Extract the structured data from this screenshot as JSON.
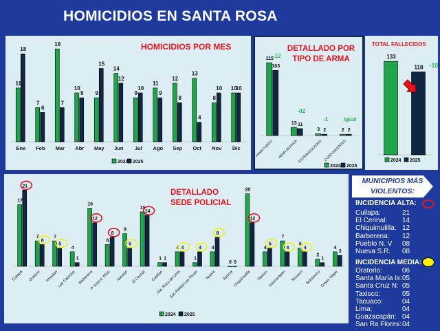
{
  "header": {
    "title": "HOMICIDIOS EN SANTA ROSA"
  },
  "colors": {
    "y2024": "#1fa64a",
    "y2025": "#0f2742",
    "background": "#1d3a9c",
    "panel": "#dcedf3",
    "title_red": "#e8141b",
    "diff_green": "#2bb34f"
  },
  "chart_data": [
    {
      "id": "monthly",
      "type": "bar",
      "title": "HOMICIDIOS POR MES",
      "categories": [
        "Ene",
        "Feb",
        "Mar",
        "Abr",
        "May",
        "Jun",
        "Jul",
        "Ago",
        "Sep",
        "Oct",
        "Nov",
        "Dic"
      ],
      "series": [
        {
          "name": "2024",
          "values": [
            11,
            7,
            19,
            10,
            9,
            14,
            9,
            11,
            12,
            13,
            8,
            10
          ]
        },
        {
          "name": "2025",
          "values": [
            18,
            6,
            7,
            9,
            15,
            12,
            10,
            9,
            8,
            4,
            10,
            10
          ]
        }
      ],
      "ylim": [
        0,
        20
      ],
      "grid": false,
      "legend": "bottom"
    },
    {
      "id": "weapon",
      "type": "bar",
      "title": "DETALLADO POR TIPO DE ARMA",
      "categories": [
        "ARMA FUEGO",
        "ARMA BLANCA",
        "ESTRANGULADOS",
        "CONTUNDENTES"
      ],
      "series": [
        {
          "name": "2024",
          "values": [
            115,
            13,
            3,
            2
          ]
        },
        {
          "name": "2025",
          "values": [
            103,
            11,
            2,
            2
          ]
        }
      ],
      "annotations": [
        "-12",
        "-02",
        "-1",
        "Igual"
      ],
      "ylim": [
        0,
        125
      ],
      "grid": false,
      "legend": "bottom"
    },
    {
      "id": "total",
      "type": "bar",
      "title": "TOTAL FALLECIDOS",
      "categories": [
        "2024",
        "2025"
      ],
      "series": [
        {
          "values": [
            133,
            118
          ]
        }
      ],
      "annotations": [
        "-15"
      ],
      "ylim": [
        0,
        140
      ],
      "grid": false,
      "legend": "bottom"
    },
    {
      "id": "sede",
      "type": "bar",
      "title": "DETALLADO SEDE POLICIAL",
      "categories": [
        "Cuilapa",
        "Oratorio",
        "Ixhuatán",
        "Las Cabezas",
        "Barberena",
        "P. Nuevo Viñas",
        "Naranjo",
        "El Cerinal",
        "Casillas",
        "Sta. Rosa de Lima",
        "San Rafael Las Flores",
        "Nueva",
        "Ayarza",
        "Chiquimulilla",
        "Taxisco",
        "Guazacapán",
        "Tecuaco",
        "Monterrico",
        "Casas Viejas"
      ],
      "series": [
        {
          "name": "2024",
          "values": [
            17,
            7,
            7,
            4,
            16,
            6,
            9,
            15,
            1,
            4,
            1,
            4,
            0,
            20,
            4,
            7,
            5,
            2,
            4
          ]
        },
        {
          "name": "2025",
          "values": [
            21,
            6,
            5,
            1,
            12,
            8,
            5,
            14,
            1,
            4,
            4,
            8,
            0,
            12,
            5,
            4,
            4,
            1,
            3
          ]
        }
      ],
      "highlight_2025": [
        "high",
        "medium",
        "medium",
        null,
        "high",
        "high",
        "medium",
        "high",
        null,
        "medium",
        "medium",
        "medium",
        null,
        "high",
        "medium",
        "medium",
        "medium",
        null,
        null
      ],
      "ylim": [
        0,
        22
      ],
      "grid": false,
      "legend": "bottom"
    }
  ],
  "sidebar": {
    "heading": "MUNICIPIOS MÁS VIOLENTOS:",
    "high": {
      "label": "INCIDENCIA ALTA:",
      "items": [
        {
          "name": "Cuilapa:",
          "value": "21"
        },
        {
          "name": "El Cerinal:",
          "value": "14"
        },
        {
          "name": "Chiquimulilla:",
          "value": "12"
        },
        {
          "name": "Barberena:",
          "value": "12"
        },
        {
          "name": "Pueblo N. V",
          "value": "08"
        },
        {
          "name": "Nueva S.R.",
          "value": "08"
        }
      ]
    },
    "medium": {
      "label": "INCIDENCIA MEDIA:",
      "items": [
        {
          "name": "Oratorio:",
          "value": "06"
        },
        {
          "name": "Santa María Ix:",
          "value": "05"
        },
        {
          "name": "Santa Cruz N:",
          "value": "05"
        },
        {
          "name": "Taxisco:",
          "value": "05"
        },
        {
          "name": "Tacuaco:",
          "value": "04"
        },
        {
          "name": "Lima:",
          "value": "04"
        },
        {
          "name": "Guazacapán:",
          "value": "04"
        },
        {
          "name": "San Ra Flores:",
          "value": "04"
        }
      ]
    }
  }
}
